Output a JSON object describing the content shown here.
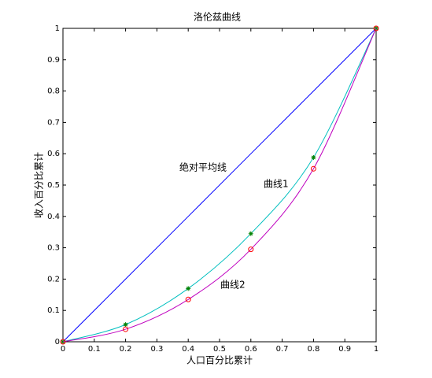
{
  "chart_data": {
    "type": "line",
    "title": "洛伦兹曲线",
    "xlabel": "人口百分比累计",
    "ylabel": "收入百分比累计",
    "x": [
      0,
      0.2,
      0.4,
      0.6,
      0.8,
      1
    ],
    "series": [
      {
        "name": "绝对平均线",
        "color": "#0000ff",
        "marker": "none",
        "values": [
          0,
          0.2,
          0.4,
          0.6,
          0.8,
          1
        ]
      },
      {
        "name": "曲线1",
        "color": "#00bfbf",
        "marker": "*",
        "marker_color": "#008000",
        "values": [
          0,
          0.055,
          0.17,
          0.345,
          0.588,
          1
        ]
      },
      {
        "name": "曲线2",
        "color": "#bf00bf",
        "marker": "o",
        "marker_color": "#ff0000",
        "values": [
          0,
          0.04,
          0.135,
          0.295,
          0.552,
          1
        ]
      }
    ],
    "xlim": [
      0,
      1
    ],
    "ylim": [
      0,
      1
    ],
    "xticks": [
      0,
      0.1,
      0.2,
      0.3,
      0.4,
      0.5,
      0.6,
      0.7,
      0.8,
      0.9,
      1
    ],
    "yticks": [
      0,
      0.1,
      0.2,
      0.3,
      0.4,
      0.5,
      0.6,
      0.7,
      0.8,
      0.9,
      1
    ],
    "grid": false
  }
}
